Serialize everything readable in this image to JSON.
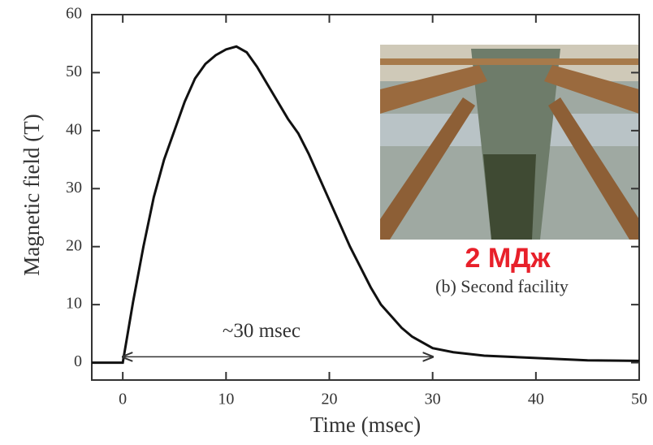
{
  "chart_data": {
    "type": "line",
    "x_label": "Time (msec)",
    "y_label": "Magnetic field (T)",
    "x": [
      -3,
      0,
      1,
      2,
      3,
      4,
      5,
      6,
      7,
      8,
      9,
      10,
      11,
      12,
      13,
      14,
      15,
      16,
      17,
      18,
      19,
      20,
      21,
      22,
      23,
      24,
      25,
      26,
      27,
      28,
      30,
      32,
      35,
      40,
      45,
      50
    ],
    "series": [
      {
        "color": "#111111",
        "values": [
          0,
          0,
          10.5,
          20,
          28.5,
          35,
          40,
          45,
          49,
          51.5,
          53,
          54,
          54.5,
          53.5,
          51,
          48,
          45,
          42,
          39.5,
          36,
          32,
          28,
          24,
          20,
          16.5,
          13,
          10,
          8,
          6,
          4.5,
          2.5,
          1.8,
          1.2,
          0.8,
          0.4,
          0.3
        ]
      }
    ],
    "xlim": [
      -3,
      50
    ],
    "ylim": [
      -3,
      60
    ],
    "xticks": [
      0,
      10,
      20,
      30,
      40,
      50
    ],
    "yticks": [
      0,
      10,
      20,
      30,
      40,
      50,
      60
    ],
    "annotation": {
      "text": "~30 msec",
      "x": [
        0,
        30
      ],
      "y": 1
    },
    "inset_caption": "(b) Second facility",
    "energy_label": "2 МДж"
  }
}
